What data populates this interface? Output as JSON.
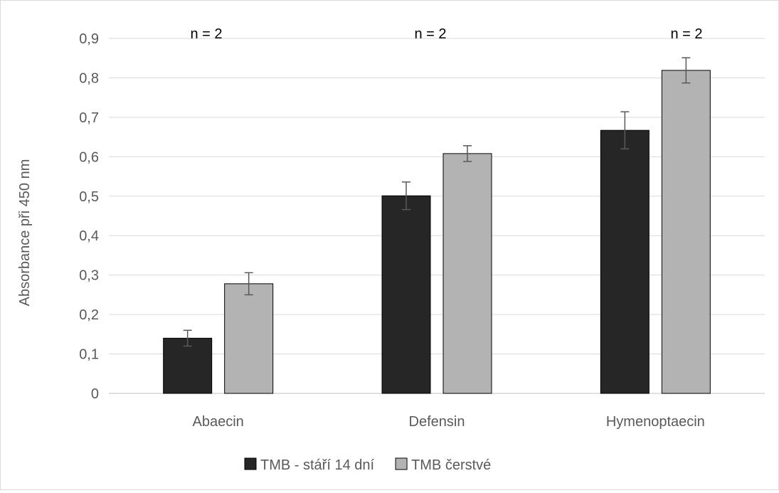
{
  "chart_data": {
    "type": "bar",
    "title": "",
    "xlabel": "",
    "ylabel": "Absorbance při 450 nm",
    "ylim": [
      0,
      0.9
    ],
    "y_ticks": [
      "0",
      "0,1",
      "0,2",
      "0,3",
      "0,4",
      "0,5",
      "0,6",
      "0,7",
      "0,8",
      "0,9"
    ],
    "y_tick_values": [
      0,
      0.1,
      0.2,
      0.3,
      0.4,
      0.5,
      0.6,
      0.7,
      0.8,
      0.9
    ],
    "grid": true,
    "legend_position": "bottom",
    "categories": [
      "Abaecin",
      "Defensin",
      "Hymenoptaecin"
    ],
    "series": [
      {
        "name": "TMB - stáří 14 dní",
        "color": "#262626",
        "values": [
          0.14,
          0.501,
          0.667
        ],
        "error": [
          0.02,
          0.035,
          0.047
        ]
      },
      {
        "name": "TMB čerstvé",
        "color": "#b3b3b3",
        "values": [
          0.278,
          0.608,
          0.819
        ],
        "error": [
          0.028,
          0.02,
          0.032
        ]
      }
    ],
    "annotations": [
      "n = 2",
      "n = 2",
      "n = 2"
    ]
  }
}
